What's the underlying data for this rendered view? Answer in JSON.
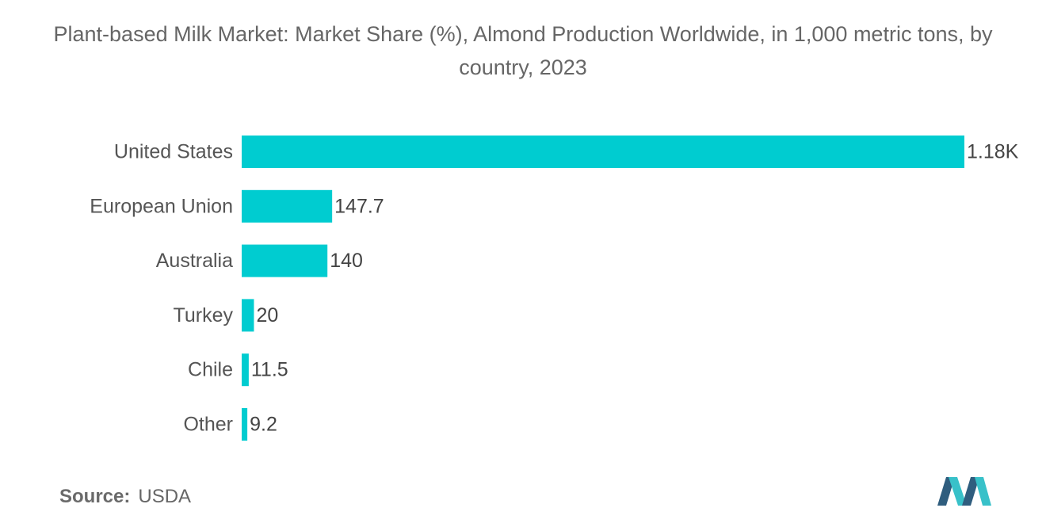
{
  "header": {
    "title": "Plant-based Milk Market: Market Share (%), Almond Production Worldwide, in 1,000 metric tons, by country, 2023"
  },
  "source": {
    "label": "Source:",
    "value": "USDA"
  },
  "colors": {
    "bar": "#00CCD0",
    "logo_dark": "#2F5D7E",
    "logo_teal": "#38C1C9"
  },
  "logo": {
    "icon": "mordor-intelligence-logo-icon"
  },
  "chart_data": {
    "type": "bar",
    "orientation": "horizontal",
    "categories": [
      "United States",
      "European Union",
      "Australia",
      "Turkey",
      "Chile",
      "Other"
    ],
    "values": [
      1180,
      147.7,
      140,
      20,
      11.5,
      9.2
    ],
    "value_labels": [
      "1.18K",
      "147.7",
      "140",
      "20",
      "11.5",
      "9.2"
    ],
    "xlim": [
      0,
      1180
    ],
    "grid": false,
    "legend": "none"
  }
}
